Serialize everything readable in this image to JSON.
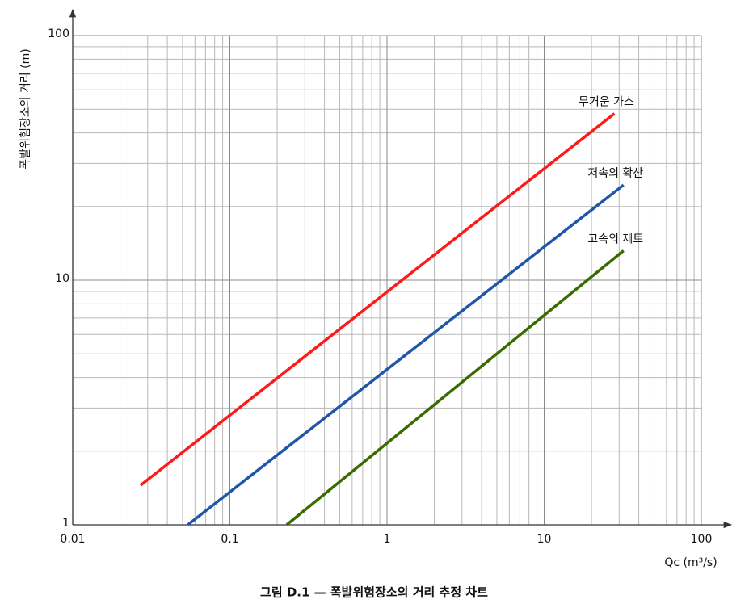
{
  "chart_data": {
    "type": "line",
    "log_x": true,
    "log_y": true,
    "grid": true,
    "y_label": "폭발위험장소의 거리 (m)",
    "x_label": "Qc (m³/s)",
    "caption": "그림 D.1 — 폭발위험장소의 거리 추정 차트",
    "xlim": [
      0.01,
      100
    ],
    "xticks": [
      0.01,
      0.1,
      1,
      10,
      100
    ],
    "ylim": [
      1,
      100
    ],
    "yticks": [
      1,
      10,
      100
    ],
    "series": [
      {
        "name": "무거운 가스",
        "color": "#ff1a1a",
        "x": [
          0.027,
          28
        ],
        "values": [
          1.45,
          48
        ]
      },
      {
        "name": "저속의 확산",
        "color": "#1f56a8",
        "x": [
          0.054,
          32
        ],
        "values": [
          1,
          24.5
        ]
      },
      {
        "name": "고속의 제트",
        "color": "#3a6b00",
        "x": [
          0.23,
          32
        ],
        "values": [
          1,
          13.2
        ]
      }
    ]
  }
}
